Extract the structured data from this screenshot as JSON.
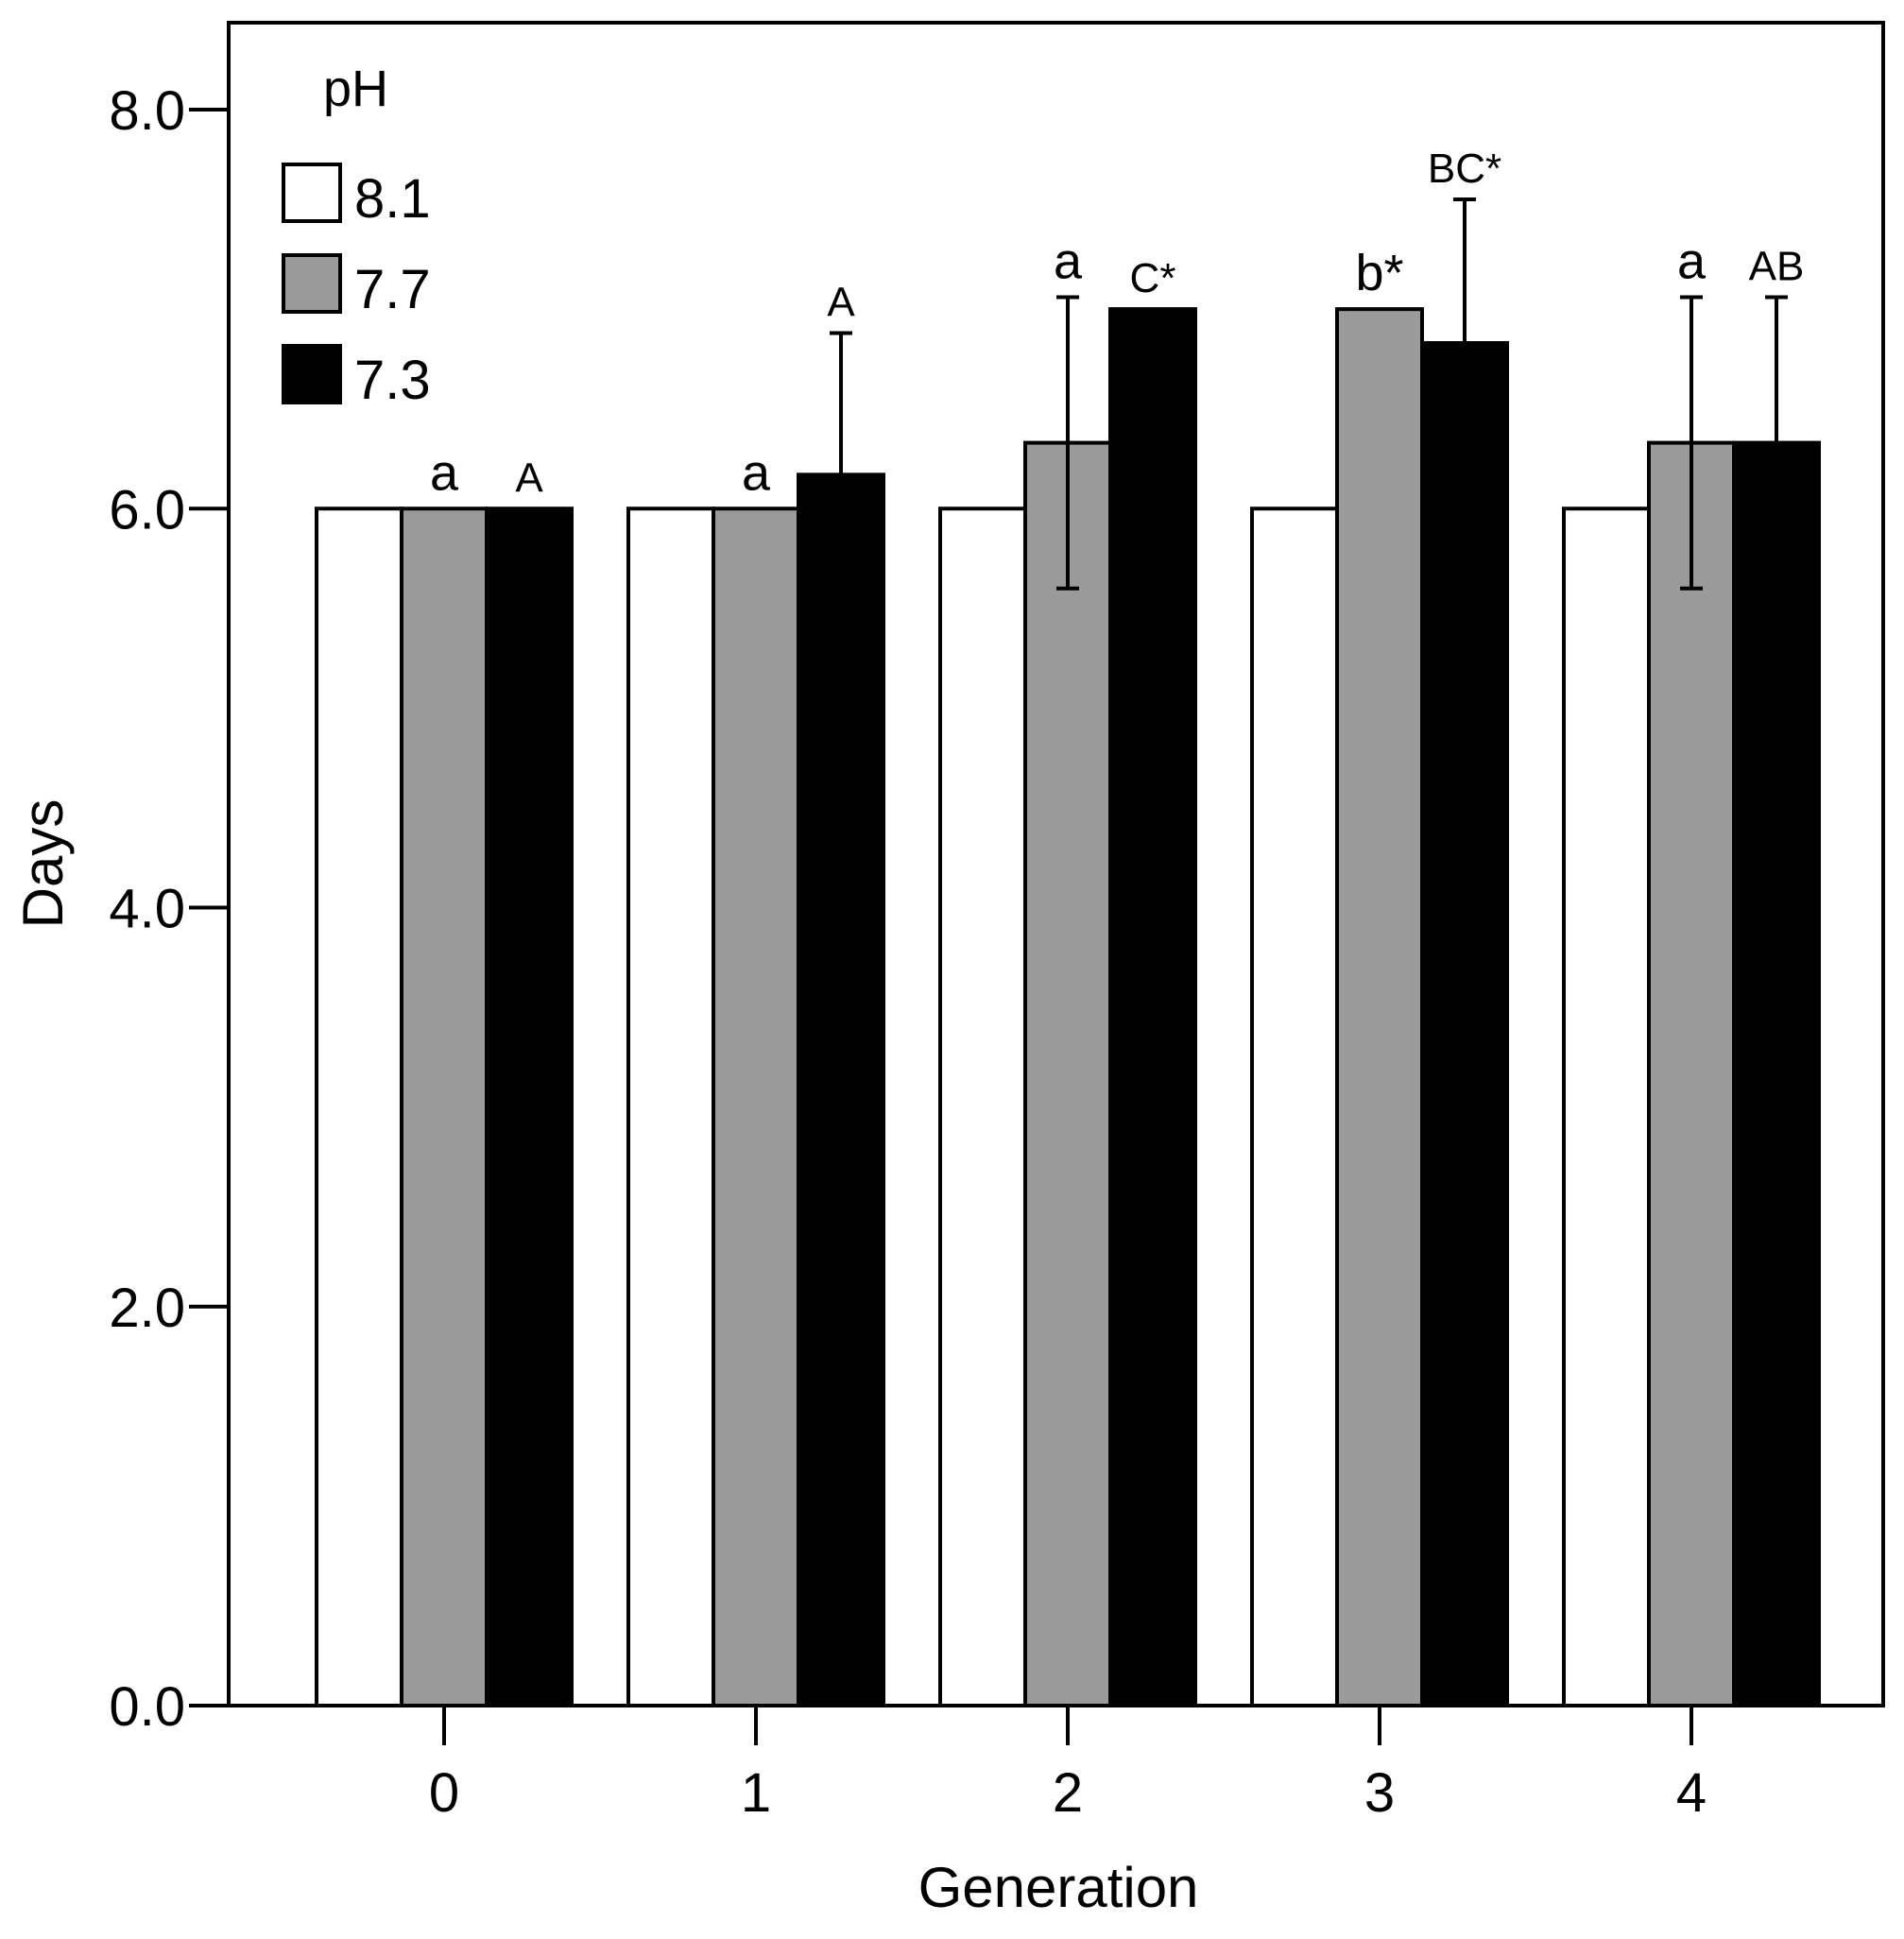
{
  "chart_data": {
    "type": "bar",
    "title": "",
    "xlabel": "Generation",
    "ylabel": "Days",
    "ylim": [
      0,
      8.5
    ],
    "yticks": [
      0,
      2,
      4,
      6,
      8
    ],
    "ytick_labels": [
      "0.0",
      "2.0",
      "4.0",
      "6.0",
      "8.0"
    ],
    "grid": false,
    "categories": [
      "0",
      "1",
      "2",
      "3",
      "4"
    ],
    "legend": {
      "title": "pH",
      "position": "top-left"
    },
    "series": [
      {
        "name": "8.1",
        "color": "#ffffff",
        "values": [
          6.0,
          6.0,
          6.0,
          6.0,
          6.0
        ],
        "errors": [
          null,
          null,
          null,
          null,
          null
        ],
        "annotations": [
          "",
          "",
          "",
          "",
          ""
        ]
      },
      {
        "name": "7.7",
        "color": "#9a9a9a",
        "values": [
          6.0,
          6.0,
          6.33,
          7.0,
          6.33
        ],
        "errors": [
          null,
          null,
          0.73,
          null,
          0.73
        ],
        "annotations": [
          "a",
          "a",
          "a",
          "b*",
          "a"
        ]
      },
      {
        "name": "7.3",
        "color": "#000000",
        "values": [
          6.0,
          6.17,
          7.0,
          6.83,
          6.33
        ],
        "errors": [
          null,
          0.71,
          null,
          0.72,
          0.73
        ],
        "annotations": [
          "A",
          "A",
          "C*",
          "BC*",
          "AB"
        ]
      }
    ]
  }
}
